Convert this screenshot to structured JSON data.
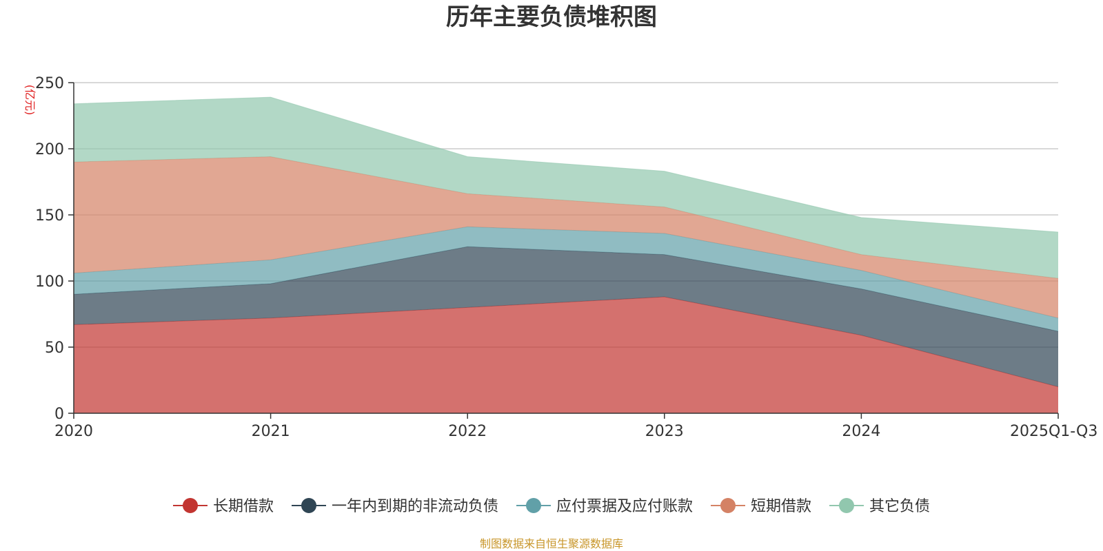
{
  "chart_data": {
    "type": "area",
    "stacked": true,
    "title": "历年主要负债堆积图",
    "unit_label": "(亿元)",
    "source": "制图数据来自恒生聚源数据库",
    "categories": [
      "2020",
      "2021",
      "2022",
      "2023",
      "2024",
      "2025Q1-Q3"
    ],
    "ylim": [
      0,
      250
    ],
    "yticks": [
      0,
      50,
      100,
      150,
      200,
      250
    ],
    "grid": true,
    "legend_position": "bottom",
    "series": [
      {
        "name": "长期借款",
        "color": "#c23531",
        "values": [
          67,
          72,
          80,
          88,
          59,
          20
        ]
      },
      {
        "name": "一年内到期的非流动负债",
        "color": "#2f4554",
        "values": [
          23,
          26,
          46,
          32,
          35,
          42
        ]
      },
      {
        "name": "应付票据及应付账款",
        "color": "#61a0a8",
        "values": [
          16,
          18,
          15,
          16,
          14,
          10
        ]
      },
      {
        "name": "短期借款",
        "color": "#d48265",
        "values": [
          84,
          78,
          25,
          20,
          12,
          30
        ]
      },
      {
        "name": "其它负债",
        "color": "#91c7ae",
        "values": [
          44,
          45,
          28,
          27,
          28,
          35
        ]
      }
    ]
  }
}
